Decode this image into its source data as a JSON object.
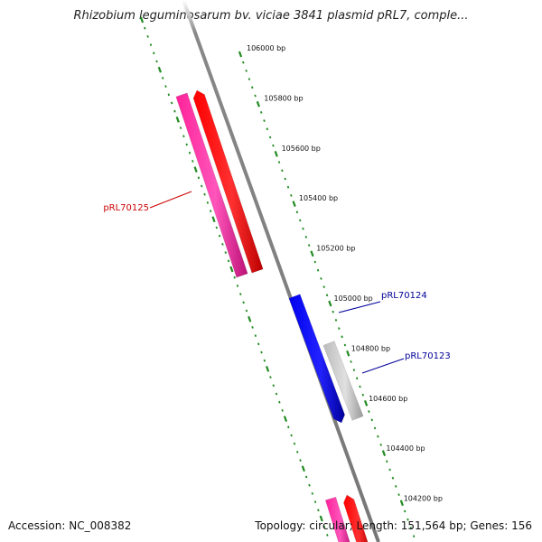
{
  "title": "Rhizobium leguminosarum bv. viciae 3841 plasmid pRL7, comple...",
  "footer": {
    "accession": "Accession: NC_008382",
    "stats": "Topology: circular; Length: 151,564 bp; Genes: 156"
  },
  "ruler": {
    "labels": [
      "106000 bp",
      "105800 bp",
      "105600 bp",
      "105400 bp",
      "105200 bp",
      "105000 bp",
      "104800 bp",
      "104600 bp",
      "104400 bp",
      "104200 bp"
    ],
    "tick_color": "#228b22"
  },
  "genes": [
    {
      "name": "pRL70125",
      "color": "#cc0000",
      "feature_colors": [
        "#ff2299",
        "#ff0000"
      ]
    },
    {
      "name": "pRL70124",
      "color": "#000099",
      "feature_colors": [
        "#0000ee"
      ]
    },
    {
      "name": "pRL70123",
      "color": "#000099",
      "feature_colors": [
        "#c8c8c8"
      ]
    }
  ],
  "bottom_features": {
    "feature_colors": [
      "#ff2299",
      "#ff0000"
    ]
  },
  "backbone_color": "#888888"
}
